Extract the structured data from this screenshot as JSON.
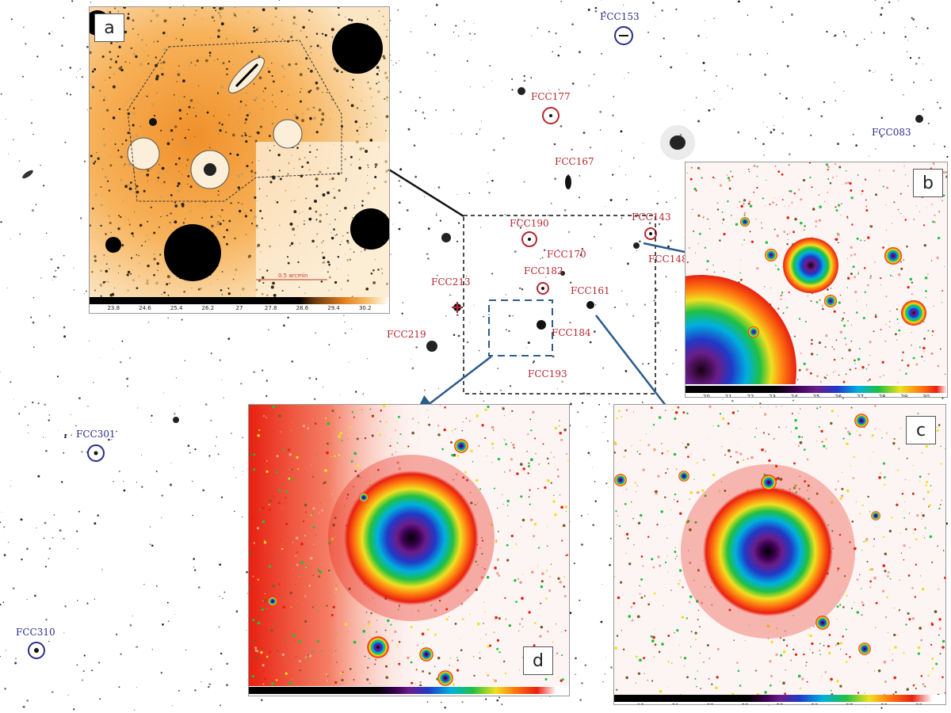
{
  "panels": {
    "a": {
      "letter": "a",
      "scale_label": "0.5 arcmin",
      "colorbar_ticks": [
        "23.8",
        "24.6",
        "25.4",
        "26.2",
        "27",
        "27.8",
        "28.6",
        "29.4",
        "30.2"
      ]
    },
    "b": {
      "letter": "b",
      "colorbar_ticks": [
        "20",
        "21",
        "22",
        "23",
        "24",
        "25",
        "26",
        "27",
        "28",
        "29",
        "30"
      ]
    },
    "c": {
      "letter": "c",
      "colorbar_ticks": [
        "19",
        "21",
        "22",
        "23",
        "25",
        "26",
        "27",
        "28",
        "30"
      ]
    },
    "d": {
      "letter": "d",
      "colorbar_ticks": [
        "19",
        "21",
        "22",
        "23",
        "25",
        "26",
        "27",
        "28",
        "30"
      ]
    }
  },
  "galaxies": {
    "fcc153": "FCC153",
    "fcc177": "FCC177",
    "fcc083": "FCC083",
    "fcc167": "FCC167",
    "fcc190": "FCC190",
    "fcc143": "FCC143",
    "fcc148": "FCC148",
    "fcc170": "FCC170",
    "fcc182": "FCC182",
    "fcc213": "FCC213",
    "fcc161": "FCC161",
    "fcc184": "FCC184",
    "fcc219": "FCC219",
    "fcc193": "FCC193",
    "fcc301": "FCC301",
    "fcc310": "FCC310"
  },
  "colors": {
    "red_label": "#b5262f",
    "blue_label": "#2a2c8c",
    "arrow_blue": "#2c5a8c"
  }
}
